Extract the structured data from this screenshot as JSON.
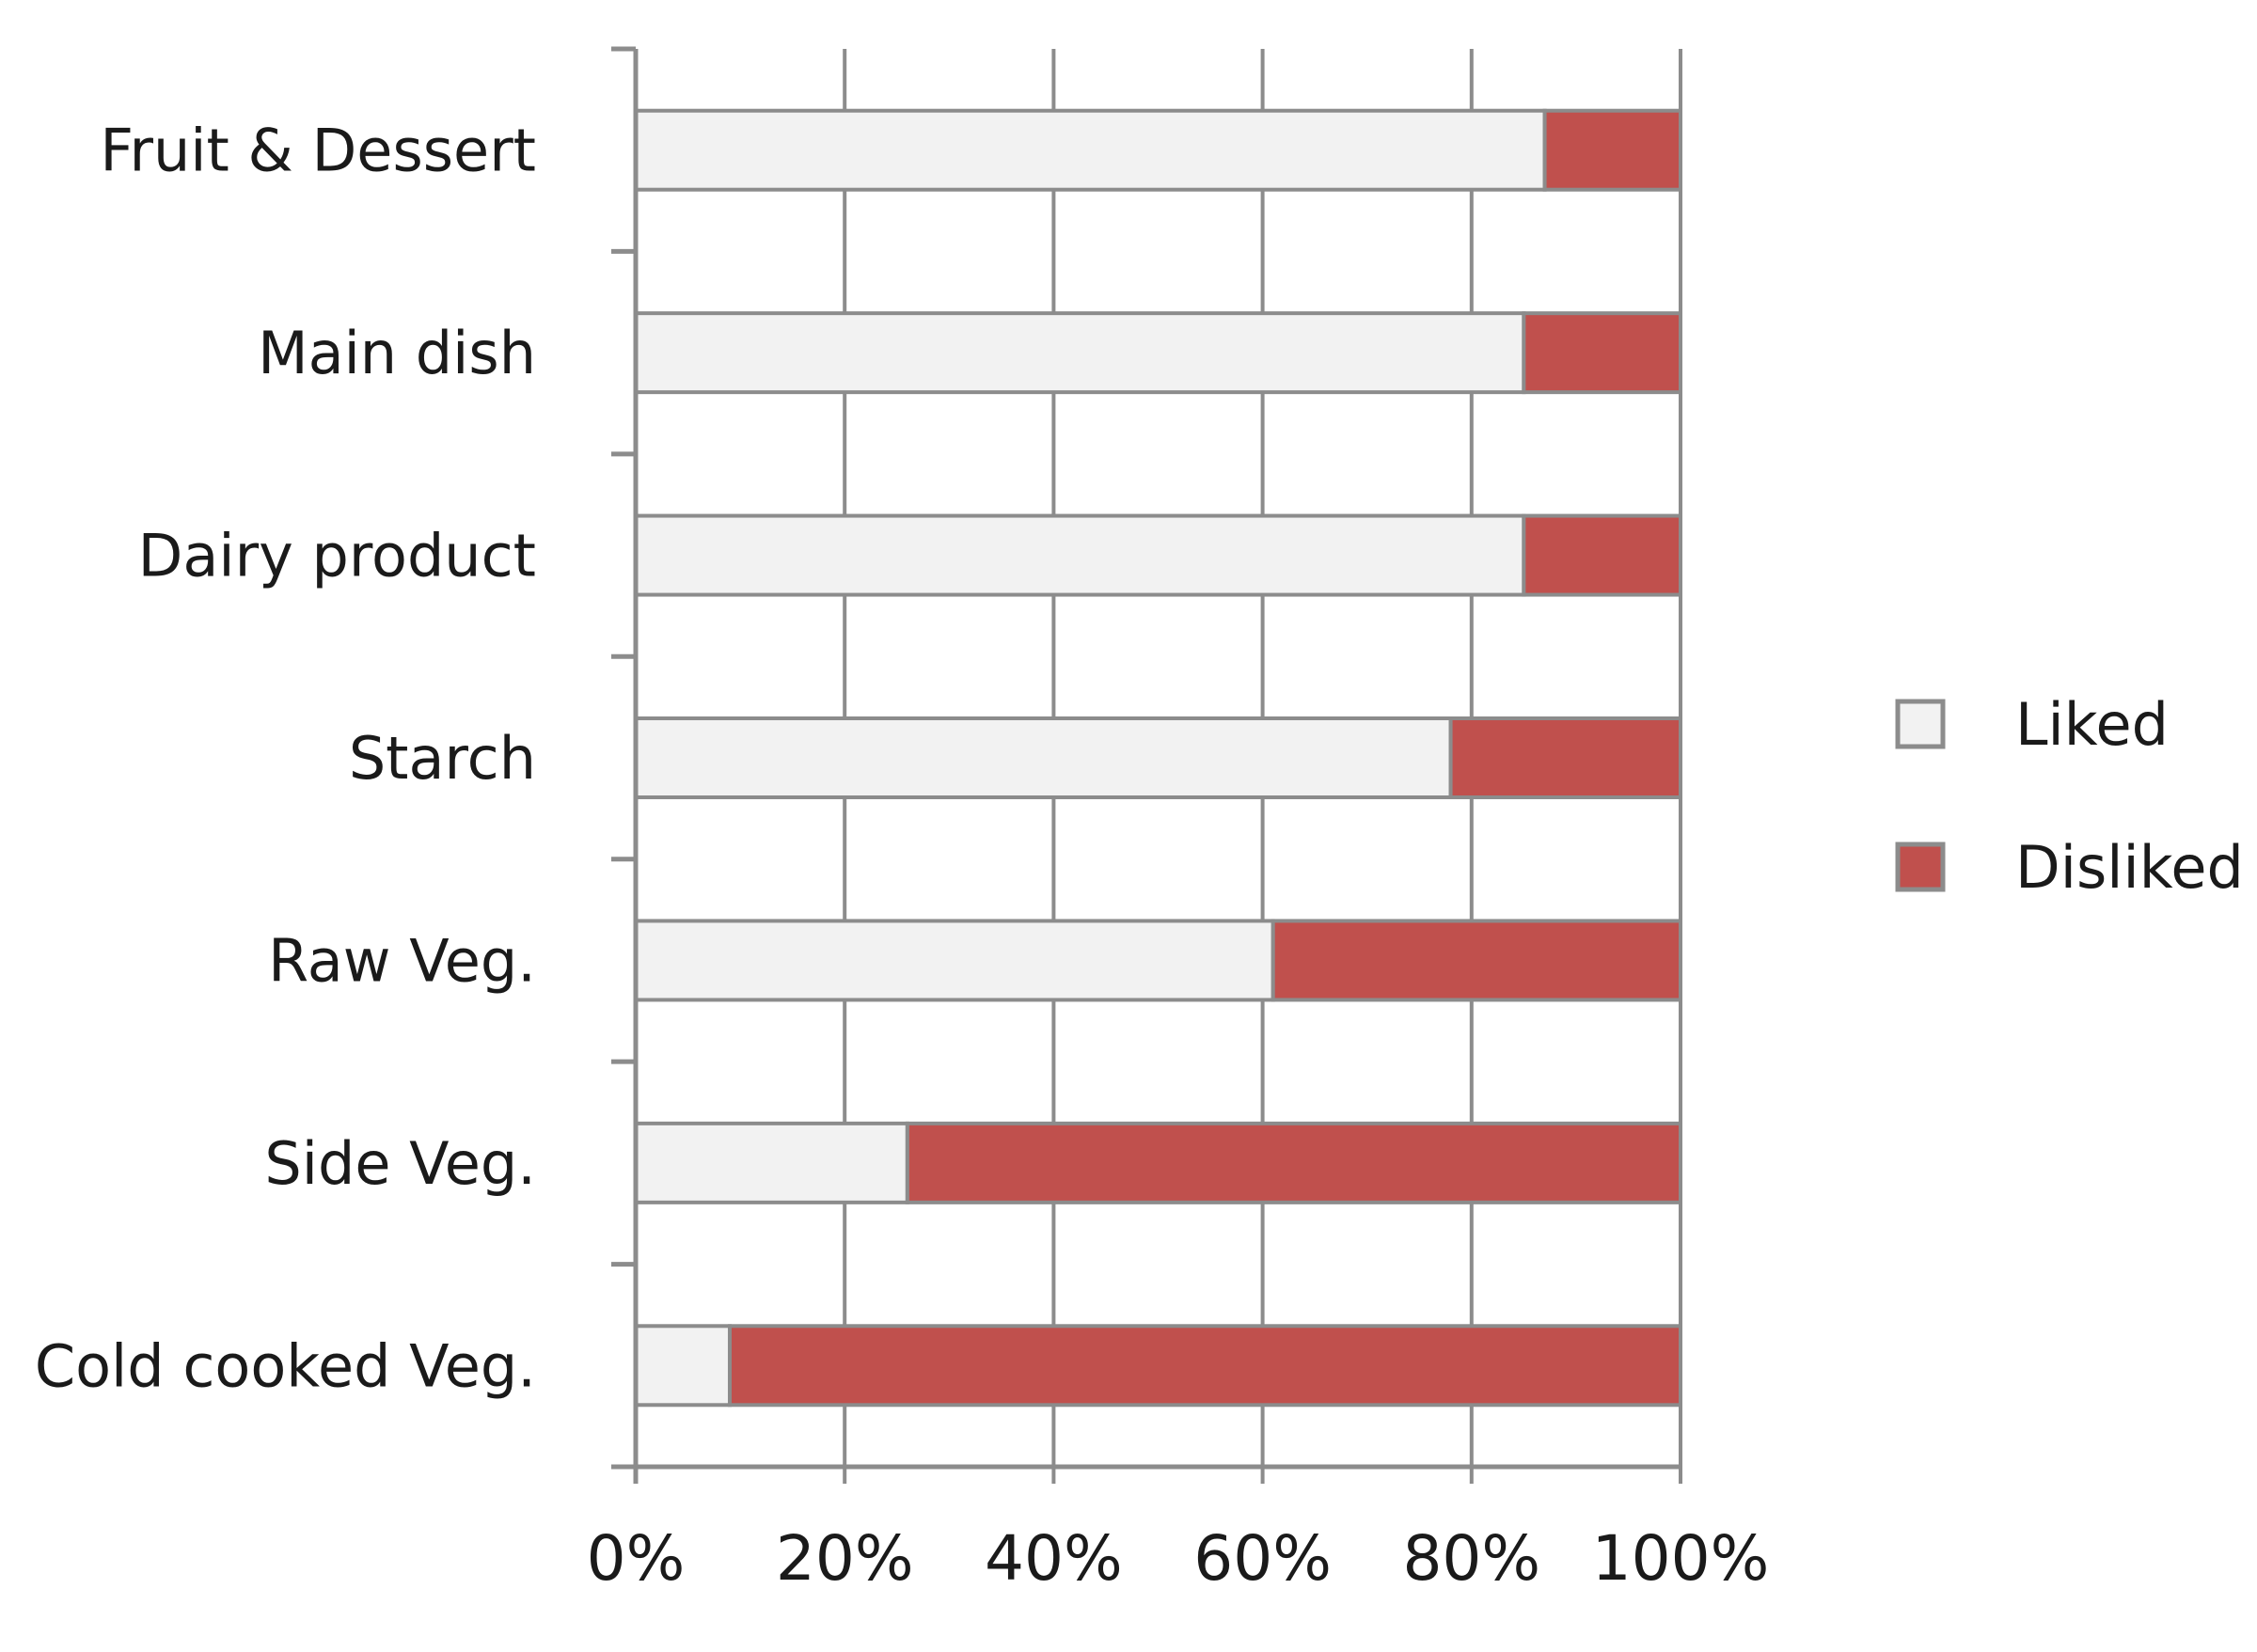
{
  "chart_data": {
    "type": "bar",
    "orientation": "horizontal",
    "stacked": true,
    "categories": [
      "Fruit & Dessert",
      "Main dish",
      "Dairy product",
      "Starch",
      "Raw Veg.",
      "Side Veg.",
      "Cold cooked Veg."
    ],
    "series": [
      {
        "name": "Liked",
        "color": "#f2f2f2",
        "values": [
          87,
          85,
          85,
          78,
          61,
          26,
          9
        ]
      },
      {
        "name": "Disliked",
        "color": "#c0504d",
        "values": [
          13,
          15,
          15,
          22,
          39,
          74,
          91
        ]
      }
    ],
    "xlim": [
      0,
      100
    ],
    "x_ticks": [
      "0%",
      "20%",
      "40%",
      "60%",
      "80%",
      "100%"
    ],
    "grid": true,
    "legend_position": "right"
  }
}
